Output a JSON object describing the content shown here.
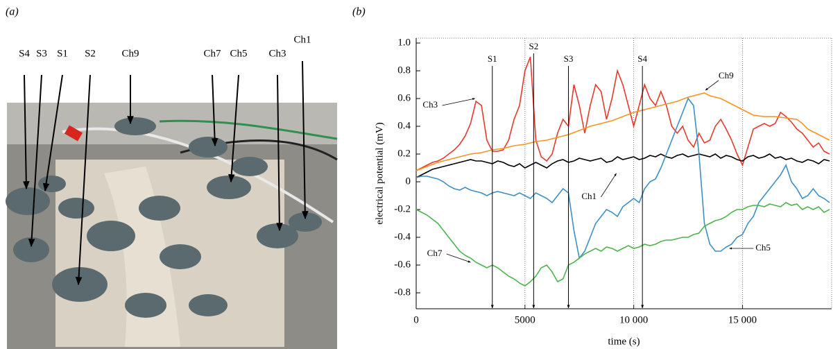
{
  "panel_a": {
    "label": "(a)",
    "photo_labels": [
      "S4",
      "S3",
      "S1",
      "S2",
      "Ch9",
      "Ch7",
      "Ch5",
      "Ch3",
      "Ch1"
    ]
  },
  "chart_data": {
    "type": "line",
    "panel_label": "(b)",
    "x_label": "time (s)",
    "y_label": "electrical potential (mV)",
    "xlim": [
      0,
      19100
    ],
    "ylim": [
      -0.915,
      1.035
    ],
    "xticks": [
      0,
      5000,
      {
        "value": 10000,
        "label": "10 000"
      },
      {
        "value": 15000,
        "label": "15 000"
      }
    ],
    "yticks": [
      {
        "value": 1,
        "label": "1.0"
      },
      0.8,
      0.6,
      0.4,
      0.2,
      0,
      -0.2,
      -0.4,
      -0.6,
      -0.8
    ],
    "grid": true,
    "stimuli": [
      {
        "label": "S1",
        "x": 3500
      },
      {
        "label": "S2",
        "x": 5400
      },
      {
        "label": "S3",
        "x": 7000
      },
      {
        "label": "S4",
        "x": 10400
      }
    ],
    "x": [
      0,
      250,
      500,
      750,
      1000,
      1250,
      1500,
      1750,
      2000,
      2250,
      2500,
      2750,
      3000,
      3250,
      3500,
      3750,
      4000,
      4250,
      4500,
      4750,
      5000,
      5250,
      5500,
      5750,
      6000,
      6250,
      6500,
      6750,
      7000,
      7250,
      7500,
      7750,
      8000,
      8250,
      8500,
      8750,
      9000,
      9250,
      9500,
      9750,
      10000,
      10250,
      10500,
      10750,
      11000,
      11250,
      11500,
      11750,
      12000,
      12250,
      12500,
      12750,
      13000,
      13250,
      13500,
      13750,
      14000,
      14250,
      14500,
      14750,
      15000,
      15250,
      15500,
      15750,
      16000,
      16250,
      16500,
      16750,
      17000,
      17250,
      17500,
      17750,
      18000,
      18250,
      18500,
      18750,
      19000
    ],
    "series": [
      {
        "name": "Ch3",
        "color": "#e8382c",
        "values": [
          0.08,
          0.1,
          0.12,
          0.14,
          0.15,
          0.17,
          0.2,
          0.23,
          0.27,
          0.33,
          0.42,
          0.58,
          0.55,
          0.3,
          0.22,
          0.22,
          0.23,
          0.3,
          0.45,
          0.55,
          0.8,
          0.9,
          0.3,
          0.18,
          0.15,
          0.2,
          0.35,
          0.45,
          0.4,
          0.7,
          0.55,
          0.35,
          0.55,
          0.7,
          0.65,
          0.45,
          0.6,
          0.8,
          0.7,
          0.55,
          0.4,
          0.55,
          0.7,
          0.6,
          0.55,
          0.65,
          0.55,
          0.4,
          0.35,
          0.4,
          0.3,
          0.25,
          0.35,
          0.28,
          0.3,
          0.4,
          0.45,
          0.38,
          0.3,
          0.2,
          0.12,
          0.25,
          0.38,
          0.4,
          0.42,
          0.4,
          0.42,
          0.5,
          0.47,
          0.43,
          0.38,
          0.35,
          0.3,
          0.25,
          0.28,
          0.22,
          0.2
        ]
      },
      {
        "name": "Ch9",
        "color": "#f7941d",
        "values": [
          0.08,
          0.095,
          0.11,
          0.125,
          0.14,
          0.15,
          0.16,
          0.17,
          0.18,
          0.19,
          0.2,
          0.205,
          0.21,
          0.22,
          0.23,
          0.235,
          0.24,
          0.25,
          0.26,
          0.265,
          0.27,
          0.28,
          0.29,
          0.295,
          0.3,
          0.31,
          0.32,
          0.33,
          0.34,
          0.355,
          0.37,
          0.385,
          0.4,
          0.41,
          0.42,
          0.43,
          0.44,
          0.455,
          0.47,
          0.485,
          0.5,
          0.51,
          0.52,
          0.53,
          0.54,
          0.55,
          0.56,
          0.57,
          0.58,
          0.595,
          0.61,
          0.62,
          0.63,
          0.64,
          0.62,
          0.61,
          0.6,
          0.58,
          0.56,
          0.54,
          0.52,
          0.5,
          0.48,
          0.475,
          0.47,
          0.47,
          0.47,
          0.465,
          0.46,
          0.455,
          0.45,
          0.42,
          0.38,
          0.36,
          0.34,
          0.32,
          0.3
        ]
      },
      {
        "name": "Ch1",
        "color": "#000000",
        "values": [
          0.03,
          0.05,
          0.07,
          0.09,
          0.1,
          0.11,
          0.12,
          0.13,
          0.14,
          0.15,
          0.16,
          0.15,
          0.15,
          0.14,
          0.13,
          0.15,
          0.14,
          0.12,
          0.11,
          0.13,
          0.1,
          0.12,
          0.14,
          0.12,
          0.1,
          0.13,
          0.15,
          0.16,
          0.14,
          0.15,
          0.17,
          0.16,
          0.15,
          0.16,
          0.17,
          0.14,
          0.15,
          0.18,
          0.16,
          0.17,
          0.18,
          0.16,
          0.17,
          0.19,
          0.18,
          0.2,
          0.18,
          0.17,
          0.19,
          0.2,
          0.18,
          0.19,
          0.2,
          0.19,
          0.18,
          0.2,
          0.17,
          0.19,
          0.18,
          0.16,
          0.15,
          0.18,
          0.19,
          0.17,
          0.18,
          0.2,
          0.17,
          0.18,
          0.16,
          0.17,
          0.15,
          0.14,
          0.16,
          0.15,
          0.13,
          0.16,
          0.15
        ]
      },
      {
        "name": "Ch5",
        "color": "#3b8fc4",
        "values": [
          0.03,
          0.04,
          0.04,
          0.03,
          0.02,
          0,
          -0.03,
          -0.05,
          -0.06,
          -0.04,
          -0.06,
          -0.07,
          -0.08,
          -0.1,
          -0.08,
          -0.07,
          -0.08,
          -0.09,
          -0.1,
          -0.08,
          -0.1,
          -0.12,
          -0.08,
          -0.1,
          -0.12,
          -0.15,
          -0.1,
          -0.05,
          -0.08,
          -0.35,
          -0.55,
          -0.5,
          -0.4,
          -0.3,
          -0.25,
          -0.2,
          -0.22,
          -0.25,
          -0.18,
          -0.15,
          -0.12,
          -0.15,
          -0.05,
          0,
          0.02,
          0.1,
          0.2,
          0.3,
          0.4,
          0.5,
          0.6,
          0.55,
          0.2,
          -0.3,
          -0.45,
          -0.5,
          -0.5,
          -0.47,
          -0.45,
          -0.4,
          -0.38,
          -0.3,
          -0.25,
          -0.15,
          -0.1,
          -0.05,
          0,
          0.05,
          0.12,
          0,
          -0.05,
          -0.12,
          -0.1,
          -0.05,
          -0.1,
          -0.12,
          -0.15
        ]
      },
      {
        "name": "Ch7",
        "color": "#4db34d",
        "values": [
          -0.2,
          -0.22,
          -0.24,
          -0.27,
          -0.3,
          -0.35,
          -0.4,
          -0.45,
          -0.5,
          -0.53,
          -0.55,
          -0.58,
          -0.6,
          -0.62,
          -0.6,
          -0.62,
          -0.65,
          -0.68,
          -0.7,
          -0.73,
          -0.75,
          -0.72,
          -0.68,
          -0.62,
          -0.6,
          -0.65,
          -0.72,
          -0.7,
          -0.6,
          -0.58,
          -0.55,
          -0.52,
          -0.5,
          -0.48,
          -0.5,
          -0.47,
          -0.48,
          -0.5,
          -0.48,
          -0.46,
          -0.48,
          -0.47,
          -0.45,
          -0.46,
          -0.45,
          -0.43,
          -0.42,
          -0.42,
          -0.41,
          -0.4,
          -0.4,
          -0.38,
          -0.37,
          -0.32,
          -0.3,
          -0.28,
          -0.27,
          -0.25,
          -0.22,
          -0.2,
          -0.2,
          -0.18,
          -0.17,
          -0.17,
          -0.18,
          -0.16,
          -0.17,
          -0.18,
          -0.15,
          -0.17,
          -0.16,
          -0.2,
          -0.18,
          -0.2,
          -0.18,
          -0.22,
          -0.2
        ]
      }
    ]
  }
}
